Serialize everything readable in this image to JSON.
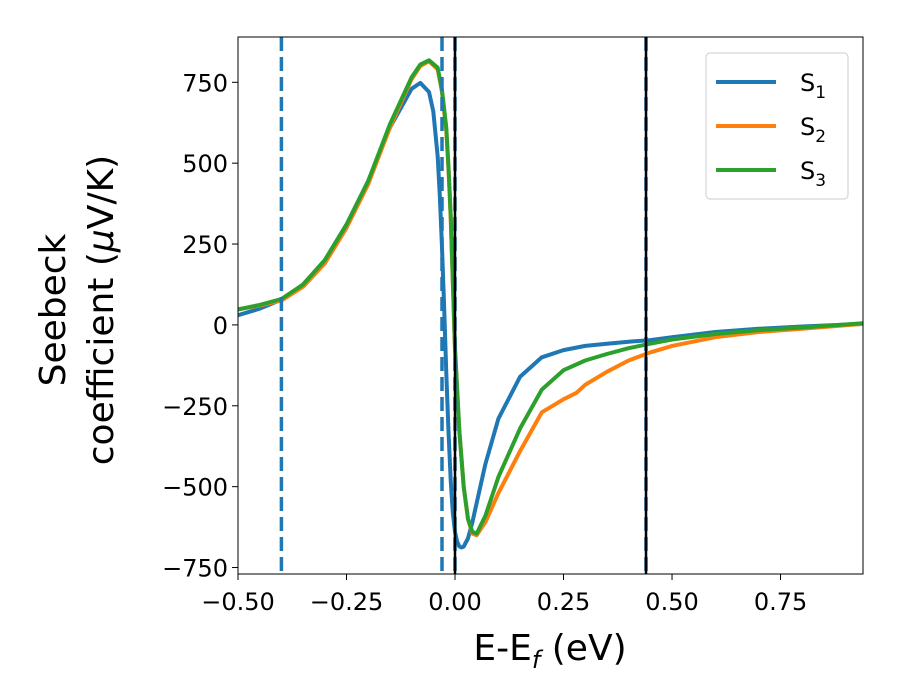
{
  "chart_data": {
    "type": "line",
    "title": "",
    "xlabel": {
      "main": "E-E",
      "sub": "f",
      "suffix": " (eV)"
    },
    "ylabel": {
      "line1": "Seebeck",
      "line2_prefix": "coefficient  (",
      "mu": "μ",
      "line2_suffix": "V/K)"
    },
    "xlim": [
      -0.5,
      0.94
    ],
    "ylim": [
      -770,
      890
    ],
    "xticks": [
      -0.5,
      -0.25,
      0.0,
      0.25,
      0.5,
      0.75
    ],
    "xtick_labels": [
      "−0.50",
      "−0.25",
      "0.00",
      "0.25",
      "0.50",
      "0.75"
    ],
    "yticks": [
      -750,
      -500,
      -250,
      0,
      250,
      500,
      750
    ],
    "ytick_labels": [
      "−750",
      "−500",
      "−250",
      "0",
      "250",
      "500",
      "750"
    ],
    "grid": false,
    "legend_position": "top-right",
    "series": [
      {
        "name": {
          "base": "S",
          "sub": "1"
        },
        "color": "#1f77b4",
        "x": [
          -0.5,
          -0.45,
          -0.4,
          -0.35,
          -0.3,
          -0.25,
          -0.2,
          -0.15,
          -0.1,
          -0.08,
          -0.06,
          -0.05,
          -0.04,
          -0.035,
          -0.03,
          -0.025,
          -0.02,
          -0.015,
          -0.01,
          -0.005,
          0.0,
          0.005,
          0.01,
          0.015,
          0.02,
          0.03,
          0.04,
          0.05,
          0.07,
          0.1,
          0.15,
          0.2,
          0.25,
          0.3,
          0.35,
          0.4,
          0.45,
          0.5,
          0.6,
          0.7,
          0.8,
          0.94
        ],
        "y": [
          30,
          50,
          78,
          125,
          200,
          310,
          445,
          610,
          730,
          748,
          720,
          660,
          520,
          400,
          240,
          50,
          -150,
          -330,
          -480,
          -580,
          -640,
          -670,
          -685,
          -688,
          -685,
          -660,
          -610,
          -550,
          -430,
          -290,
          -160,
          -100,
          -78,
          -65,
          -58,
          -52,
          -47,
          -38,
          -22,
          -12,
          -5,
          3
        ]
      },
      {
        "name": {
          "base": "S",
          "sub": "2"
        },
        "color": "#ff7f0e",
        "x": [
          -0.5,
          -0.45,
          -0.4,
          -0.35,
          -0.3,
          -0.25,
          -0.2,
          -0.15,
          -0.1,
          -0.08,
          -0.06,
          -0.04,
          -0.03,
          -0.02,
          -0.015,
          -0.01,
          -0.005,
          0.0,
          0.01,
          0.02,
          0.03,
          0.04,
          0.05,
          0.07,
          0.1,
          0.15,
          0.2,
          0.25,
          0.28,
          0.3,
          0.35,
          0.4,
          0.45,
          0.5,
          0.6,
          0.7,
          0.8,
          0.94
        ],
        "y": [
          48,
          60,
          75,
          118,
          190,
          300,
          435,
          610,
          760,
          800,
          815,
          790,
          720,
          600,
          480,
          330,
          130,
          -80,
          -330,
          -500,
          -600,
          -645,
          -650,
          -610,
          -520,
          -390,
          -270,
          -230,
          -210,
          -185,
          -145,
          -110,
          -85,
          -65,
          -38,
          -22,
          -12,
          3
        ]
      },
      {
        "name": {
          "base": "S",
          "sub": "3"
        },
        "color": "#2ca02c",
        "x": [
          -0.5,
          -0.45,
          -0.4,
          -0.35,
          -0.3,
          -0.25,
          -0.2,
          -0.15,
          -0.1,
          -0.08,
          -0.06,
          -0.04,
          -0.03,
          -0.02,
          -0.015,
          -0.01,
          -0.005,
          0.0,
          0.01,
          0.02,
          0.03,
          0.04,
          0.05,
          0.07,
          0.1,
          0.15,
          0.2,
          0.25,
          0.3,
          0.35,
          0.4,
          0.45,
          0.5,
          0.6,
          0.7,
          0.8,
          0.94
        ],
        "y": [
          48,
          62,
          80,
          125,
          200,
          310,
          445,
          620,
          765,
          805,
          818,
          795,
          725,
          610,
          490,
          340,
          140,
          -70,
          -330,
          -500,
          -600,
          -640,
          -645,
          -590,
          -470,
          -320,
          -200,
          -140,
          -110,
          -90,
          -72,
          -58,
          -45,
          -28,
          -16,
          -8,
          5
        ]
      }
    ],
    "vlines": [
      {
        "x": -0.4,
        "color": "#1f77b4",
        "style": "dashed"
      },
      {
        "x": -0.03,
        "color": "#1f77b4",
        "style": "dashed"
      },
      {
        "x": 0.0,
        "color": "#1f77b4",
        "style": "dashed"
      },
      {
        "x": 0.0,
        "color": "#000000",
        "style": "solid"
      },
      {
        "x": 0.44,
        "color": "#1f77b4",
        "style": "dashed"
      },
      {
        "x": 0.44,
        "color": "#000000",
        "style": "solid"
      }
    ]
  }
}
